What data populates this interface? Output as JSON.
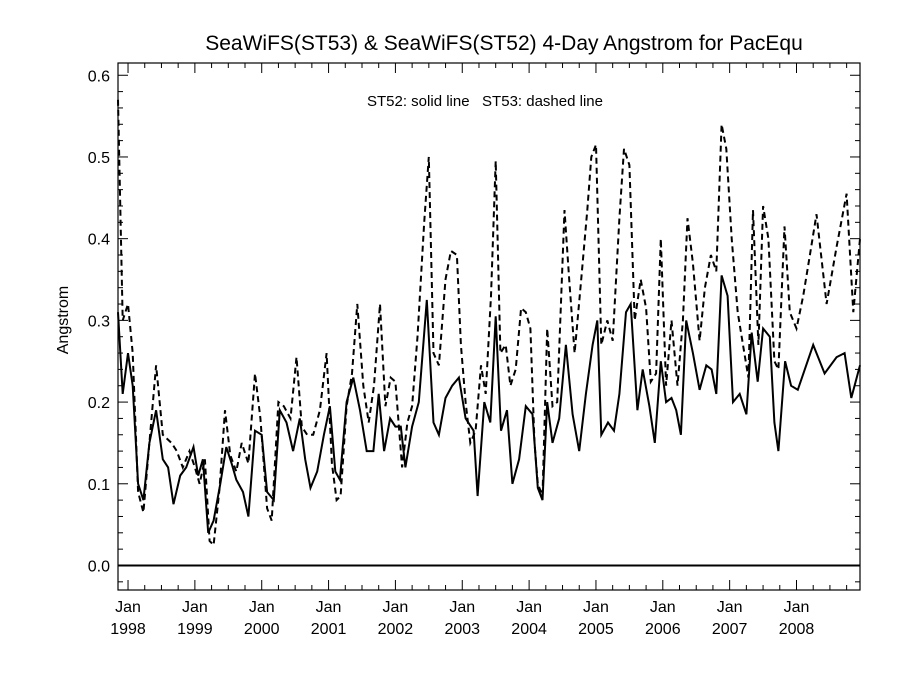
{
  "chart_data": {
    "type": "line",
    "title": "SeaWiFS(ST53) & SeaWiFS(ST52) 4-Day Angstrom for PacEqu",
    "annotation": "ST52: solid line   ST53: dashed line",
    "xlabel": "",
    "ylabel": "Angstrom",
    "xlim": [
      1997.85,
      2008.95
    ],
    "ylim": [
      -0.03,
      0.615
    ],
    "y_ticks": [
      "0.0",
      "0.1",
      "0.2",
      "0.3",
      "0.4",
      "0.5",
      "0.6"
    ],
    "x_ticks": [
      {
        "month": "Jan",
        "year": "1998"
      },
      {
        "month": "Jan",
        "year": "1999"
      },
      {
        "month": "Jan",
        "year": "2000"
      },
      {
        "month": "Jan",
        "year": "2001"
      },
      {
        "month": "Jan",
        "year": "2002"
      },
      {
        "month": "Jan",
        "year": "2003"
      },
      {
        "month": "Jan",
        "year": "2004"
      },
      {
        "month": "Jan",
        "year": "2005"
      },
      {
        "month": "Jan",
        "year": "2006"
      },
      {
        "month": "Jan",
        "year": "2007"
      },
      {
        "month": "Jan",
        "year": "2008"
      }
    ],
    "reference_line": 0.0,
    "grid": false,
    "series": [
      {
        "name": "ST52",
        "style": "solid",
        "points": [
          [
            1997.85,
            0.31
          ],
          [
            1997.92,
            0.21
          ],
          [
            1998.0,
            0.26
          ],
          [
            1998.07,
            0.22
          ],
          [
            1998.15,
            0.1
          ],
          [
            1998.23,
            0.08
          ],
          [
            1998.32,
            0.15
          ],
          [
            1998.42,
            0.19
          ],
          [
            1998.52,
            0.13
          ],
          [
            1998.6,
            0.12
          ],
          [
            1998.68,
            0.075
          ],
          [
            1998.78,
            0.11
          ],
          [
            1998.87,
            0.12
          ],
          [
            1998.98,
            0.145
          ],
          [
            1999.05,
            0.11
          ],
          [
            1999.12,
            0.13
          ],
          [
            1999.2,
            0.04
          ],
          [
            1999.28,
            0.055
          ],
          [
            1999.38,
            0.1
          ],
          [
            1999.47,
            0.145
          ],
          [
            1999.55,
            0.125
          ],
          [
            1999.62,
            0.105
          ],
          [
            1999.72,
            0.09
          ],
          [
            1999.8,
            0.06
          ],
          [
            1999.9,
            0.165
          ],
          [
            2000.0,
            0.16
          ],
          [
            2000.08,
            0.09
          ],
          [
            2000.18,
            0.08
          ],
          [
            2000.27,
            0.19
          ],
          [
            2000.37,
            0.175
          ],
          [
            2000.47,
            0.14
          ],
          [
            2000.57,
            0.18
          ],
          [
            2000.65,
            0.13
          ],
          [
            2000.73,
            0.095
          ],
          [
            2000.83,
            0.115
          ],
          [
            2000.93,
            0.16
          ],
          [
            2001.02,
            0.195
          ],
          [
            2001.1,
            0.115
          ],
          [
            2001.17,
            0.105
          ],
          [
            2001.27,
            0.2
          ],
          [
            2001.37,
            0.23
          ],
          [
            2001.47,
            0.19
          ],
          [
            2001.57,
            0.14
          ],
          [
            2001.67,
            0.14
          ],
          [
            2001.75,
            0.21
          ],
          [
            2001.83,
            0.14
          ],
          [
            2001.92,
            0.18
          ],
          [
            2002.0,
            0.17
          ],
          [
            2002.08,
            0.17
          ],
          [
            2002.15,
            0.12
          ],
          [
            2002.25,
            0.17
          ],
          [
            2002.35,
            0.2
          ],
          [
            2002.47,
            0.325
          ],
          [
            2002.57,
            0.175
          ],
          [
            2002.65,
            0.16
          ],
          [
            2002.75,
            0.205
          ],
          [
            2002.85,
            0.22
          ],
          [
            2002.95,
            0.23
          ],
          [
            2003.05,
            0.18
          ],
          [
            2003.17,
            0.165
          ],
          [
            2003.23,
            0.085
          ],
          [
            2003.33,
            0.2
          ],
          [
            2003.42,
            0.175
          ],
          [
            2003.5,
            0.305
          ],
          [
            2003.58,
            0.165
          ],
          [
            2003.67,
            0.19
          ],
          [
            2003.75,
            0.1
          ],
          [
            2003.85,
            0.13
          ],
          [
            2003.95,
            0.195
          ],
          [
            2004.05,
            0.185
          ],
          [
            2004.13,
            0.095
          ],
          [
            2004.2,
            0.08
          ],
          [
            2004.27,
            0.2
          ],
          [
            2004.35,
            0.15
          ],
          [
            2004.45,
            0.18
          ],
          [
            2004.55,
            0.27
          ],
          [
            2004.65,
            0.185
          ],
          [
            2004.75,
            0.14
          ],
          [
            2004.85,
            0.21
          ],
          [
            2004.95,
            0.27
          ],
          [
            2005.02,
            0.3
          ],
          [
            2005.08,
            0.16
          ],
          [
            2005.18,
            0.175
          ],
          [
            2005.27,
            0.165
          ],
          [
            2005.35,
            0.21
          ],
          [
            2005.45,
            0.31
          ],
          [
            2005.52,
            0.32
          ],
          [
            2005.62,
            0.19
          ],
          [
            2005.7,
            0.24
          ],
          [
            2005.8,
            0.195
          ],
          [
            2005.88,
            0.15
          ],
          [
            2005.97,
            0.25
          ],
          [
            2006.05,
            0.2
          ],
          [
            2006.13,
            0.205
          ],
          [
            2006.2,
            0.19
          ],
          [
            2006.27,
            0.16
          ],
          [
            2006.35,
            0.3
          ],
          [
            2006.45,
            0.26
          ],
          [
            2006.55,
            0.215
          ],
          [
            2006.65,
            0.245
          ],
          [
            2006.73,
            0.24
          ],
          [
            2006.8,
            0.21
          ],
          [
            2006.88,
            0.355
          ],
          [
            2006.97,
            0.33
          ],
          [
            2007.05,
            0.2
          ],
          [
            2007.15,
            0.21
          ],
          [
            2007.25,
            0.185
          ],
          [
            2007.33,
            0.285
          ],
          [
            2007.42,
            0.225
          ],
          [
            2007.5,
            0.29
          ],
          [
            2007.6,
            0.28
          ],
          [
            2007.67,
            0.175
          ],
          [
            2007.73,
            0.14
          ],
          [
            2007.83,
            0.25
          ],
          [
            2007.92,
            0.22
          ],
          [
            2008.02,
            0.215
          ],
          [
            2008.25,
            0.27
          ],
          [
            2008.42,
            0.235
          ],
          [
            2008.6,
            0.255
          ],
          [
            2008.72,
            0.26
          ],
          [
            2008.82,
            0.205
          ],
          [
            2008.95,
            0.245
          ]
        ]
      },
      {
        "name": "ST53",
        "style": "dashed",
        "points": [
          [
            1997.85,
            0.57
          ],
          [
            1997.92,
            0.3
          ],
          [
            1998.0,
            0.32
          ],
          [
            1998.07,
            0.26
          ],
          [
            1998.15,
            0.09
          ],
          [
            1998.23,
            0.065
          ],
          [
            1998.32,
            0.15
          ],
          [
            1998.42,
            0.245
          ],
          [
            1998.52,
            0.16
          ],
          [
            1998.65,
            0.15
          ],
          [
            1998.73,
            0.14
          ],
          [
            1998.82,
            0.12
          ],
          [
            1998.92,
            0.14
          ],
          [
            1999.0,
            0.12
          ],
          [
            1999.07,
            0.1
          ],
          [
            1999.15,
            0.13
          ],
          [
            1999.22,
            0.03
          ],
          [
            1999.28,
            0.025
          ],
          [
            1999.37,
            0.095
          ],
          [
            1999.45,
            0.19
          ],
          [
            1999.53,
            0.135
          ],
          [
            1999.62,
            0.115
          ],
          [
            1999.7,
            0.15
          ],
          [
            1999.8,
            0.125
          ],
          [
            1999.9,
            0.235
          ],
          [
            1999.98,
            0.18
          ],
          [
            2000.08,
            0.07
          ],
          [
            2000.15,
            0.055
          ],
          [
            2000.25,
            0.2
          ],
          [
            2000.33,
            0.195
          ],
          [
            2000.43,
            0.18
          ],
          [
            2000.52,
            0.255
          ],
          [
            2000.6,
            0.17
          ],
          [
            2000.68,
            0.16
          ],
          [
            2000.77,
            0.16
          ],
          [
            2000.87,
            0.19
          ],
          [
            2000.97,
            0.26
          ],
          [
            2001.05,
            0.125
          ],
          [
            2001.12,
            0.08
          ],
          [
            2001.18,
            0.085
          ],
          [
            2001.27,
            0.195
          ],
          [
            2001.35,
            0.235
          ],
          [
            2001.43,
            0.32
          ],
          [
            2001.52,
            0.22
          ],
          [
            2001.6,
            0.175
          ],
          [
            2001.68,
            0.22
          ],
          [
            2001.77,
            0.32
          ],
          [
            2001.85,
            0.195
          ],
          [
            2001.93,
            0.23
          ],
          [
            2002.0,
            0.225
          ],
          [
            2002.1,
            0.12
          ],
          [
            2002.18,
            0.175
          ],
          [
            2002.25,
            0.195
          ],
          [
            2002.33,
            0.28
          ],
          [
            2002.43,
            0.42
          ],
          [
            2002.5,
            0.5
          ],
          [
            2002.57,
            0.26
          ],
          [
            2002.65,
            0.245
          ],
          [
            2002.75,
            0.35
          ],
          [
            2002.83,
            0.385
          ],
          [
            2002.92,
            0.38
          ],
          [
            2002.98,
            0.27
          ],
          [
            2003.05,
            0.2
          ],
          [
            2003.12,
            0.15
          ],
          [
            2003.2,
            0.165
          ],
          [
            2003.28,
            0.245
          ],
          [
            2003.35,
            0.21
          ],
          [
            2003.43,
            0.33
          ],
          [
            2003.5,
            0.495
          ],
          [
            2003.57,
            0.26
          ],
          [
            2003.65,
            0.27
          ],
          [
            2003.72,
            0.22
          ],
          [
            2003.8,
            0.24
          ],
          [
            2003.88,
            0.315
          ],
          [
            2003.95,
            0.31
          ],
          [
            2004.02,
            0.29
          ],
          [
            2004.08,
            0.15
          ],
          [
            2004.13,
            0.1
          ],
          [
            2004.2,
            0.085
          ],
          [
            2004.27,
            0.29
          ],
          [
            2004.35,
            0.195
          ],
          [
            2004.42,
            0.2
          ],
          [
            2004.53,
            0.435
          ],
          [
            2004.6,
            0.35
          ],
          [
            2004.68,
            0.26
          ],
          [
            2004.78,
            0.35
          ],
          [
            2004.87,
            0.435
          ],
          [
            2004.93,
            0.5
          ],
          [
            2005.0,
            0.515
          ],
          [
            2005.08,
            0.27
          ],
          [
            2005.17,
            0.3
          ],
          [
            2005.25,
            0.275
          ],
          [
            2005.35,
            0.425
          ],
          [
            2005.42,
            0.51
          ],
          [
            2005.5,
            0.49
          ],
          [
            2005.58,
            0.3
          ],
          [
            2005.67,
            0.35
          ],
          [
            2005.75,
            0.315
          ],
          [
            2005.82,
            0.225
          ],
          [
            2005.9,
            0.235
          ],
          [
            2005.97,
            0.4
          ],
          [
            2006.05,
            0.22
          ],
          [
            2006.13,
            0.3
          ],
          [
            2006.22,
            0.22
          ],
          [
            2006.3,
            0.3
          ],
          [
            2006.37,
            0.425
          ],
          [
            2006.45,
            0.37
          ],
          [
            2006.55,
            0.275
          ],
          [
            2006.63,
            0.34
          ],
          [
            2006.72,
            0.38
          ],
          [
            2006.8,
            0.36
          ],
          [
            2006.88,
            0.54
          ],
          [
            2006.95,
            0.51
          ],
          [
            2007.03,
            0.4
          ],
          [
            2007.12,
            0.31
          ],
          [
            2007.2,
            0.27
          ],
          [
            2007.28,
            0.23
          ],
          [
            2007.35,
            0.435
          ],
          [
            2007.43,
            0.27
          ],
          [
            2007.5,
            0.44
          ],
          [
            2007.58,
            0.4
          ],
          [
            2007.67,
            0.25
          ],
          [
            2007.73,
            0.24
          ],
          [
            2007.82,
            0.415
          ],
          [
            2007.9,
            0.31
          ],
          [
            2008.0,
            0.29
          ],
          [
            2008.1,
            0.33
          ],
          [
            2008.2,
            0.38
          ],
          [
            2008.3,
            0.43
          ],
          [
            2008.45,
            0.32
          ],
          [
            2008.6,
            0.39
          ],
          [
            2008.75,
            0.455
          ],
          [
            2008.85,
            0.31
          ],
          [
            2008.95,
            0.4
          ]
        ]
      }
    ]
  }
}
